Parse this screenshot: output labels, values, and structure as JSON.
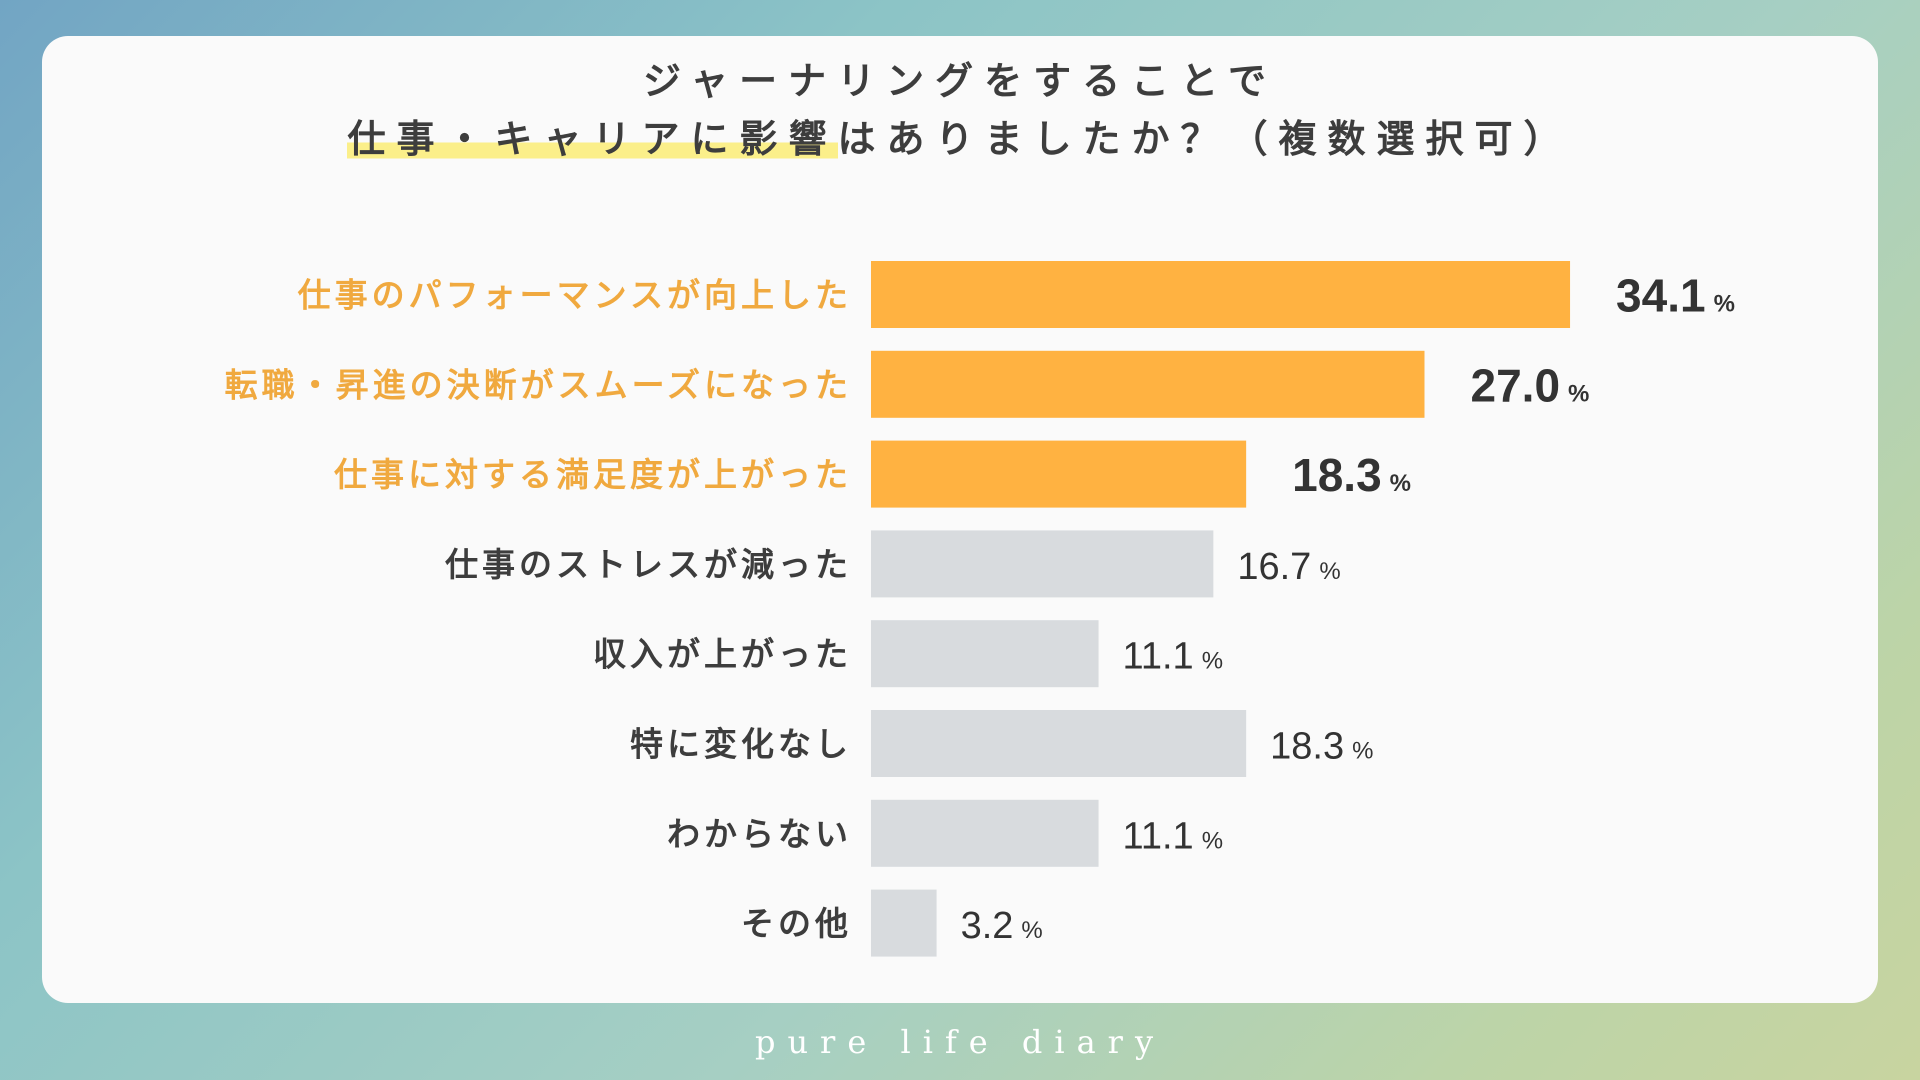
{
  "title": {
    "line1": "ジャーナリングをすることで",
    "line2_highlight": "仕事・キャリアに影響",
    "line2_rest": "はありましたか？（複数選択可）"
  },
  "chart_data": {
    "type": "bar",
    "orientation": "horizontal",
    "categories": [
      "仕事のパフォーマンスが向上した",
      "転職・昇進の決断がスムーズになった",
      "仕事に対する満足度が上がった",
      "仕事のストレスが減った",
      "収入が上がった",
      "特に変化なし",
      "わからない",
      "その他"
    ],
    "values": [
      34.1,
      27.0,
      18.3,
      16.7,
      11.1,
      18.3,
      11.1,
      3.2
    ],
    "value_labels": [
      "34.1",
      "27.0",
      "18.3",
      "16.7",
      "11.1",
      "18.3",
      "11.1",
      "3.2"
    ],
    "unit": "%",
    "highlighted": [
      true,
      true,
      true,
      false,
      false,
      false,
      false,
      false
    ],
    "colors": {
      "highlight_bar": "#ffb241",
      "highlight_label": "#f0a93f",
      "normal_bar": "#d8dbde",
      "normal_label": "#3d3d3d",
      "value_text": "#333333"
    }
  },
  "footer": {
    "brand": "pure life diary"
  }
}
